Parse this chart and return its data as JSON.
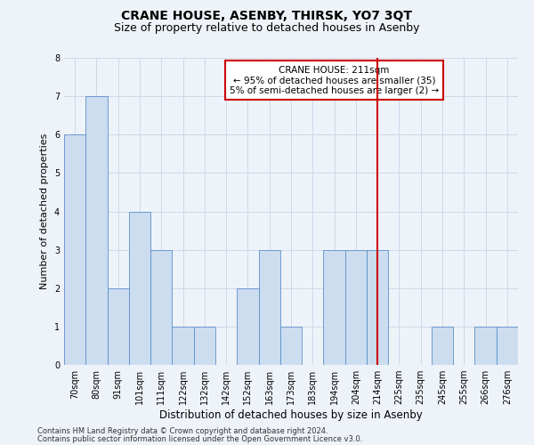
{
  "title": "CRANE HOUSE, ASENBY, THIRSK, YO7 3QT",
  "subtitle": "Size of property relative to detached houses in Asenby",
  "xlabel": "Distribution of detached houses by size in Asenby",
  "ylabel": "Number of detached properties",
  "categories": [
    "70sqm",
    "80sqm",
    "91sqm",
    "101sqm",
    "111sqm",
    "122sqm",
    "132sqm",
    "142sqm",
    "152sqm",
    "163sqm",
    "173sqm",
    "183sqm",
    "194sqm",
    "204sqm",
    "214sqm",
    "225sqm",
    "235sqm",
    "245sqm",
    "255sqm",
    "266sqm",
    "276sqm"
  ],
  "values": [
    6,
    7,
    2,
    4,
    3,
    1,
    1,
    0,
    2,
    3,
    1,
    0,
    3,
    3,
    3,
    0,
    0,
    1,
    0,
    1,
    1
  ],
  "bar_color": "#ccddef",
  "bar_edge_color": "#5b8fc9",
  "grid_color": "#d0d8e8",
  "background_color": "#eef3f9",
  "vline_x_index": 14,
  "vline_color": "#cc0000",
  "annotation_box_text": "CRANE HOUSE: 211sqm\n← 95% of detached houses are smaller (35)\n5% of semi-detached houses are larger (2) →",
  "ylim": [
    0,
    8
  ],
  "yticks": [
    0,
    1,
    2,
    3,
    4,
    5,
    6,
    7,
    8
  ],
  "footnote1": "Contains HM Land Registry data © Crown copyright and database right 2024.",
  "footnote2": "Contains public sector information licensed under the Open Government Licence v3.0.",
  "title_fontsize": 10,
  "subtitle_fontsize": 9,
  "ylabel_fontsize": 8,
  "xlabel_fontsize": 8.5,
  "tick_fontsize": 7,
  "annot_fontsize": 7.5,
  "footnote_fontsize": 6
}
